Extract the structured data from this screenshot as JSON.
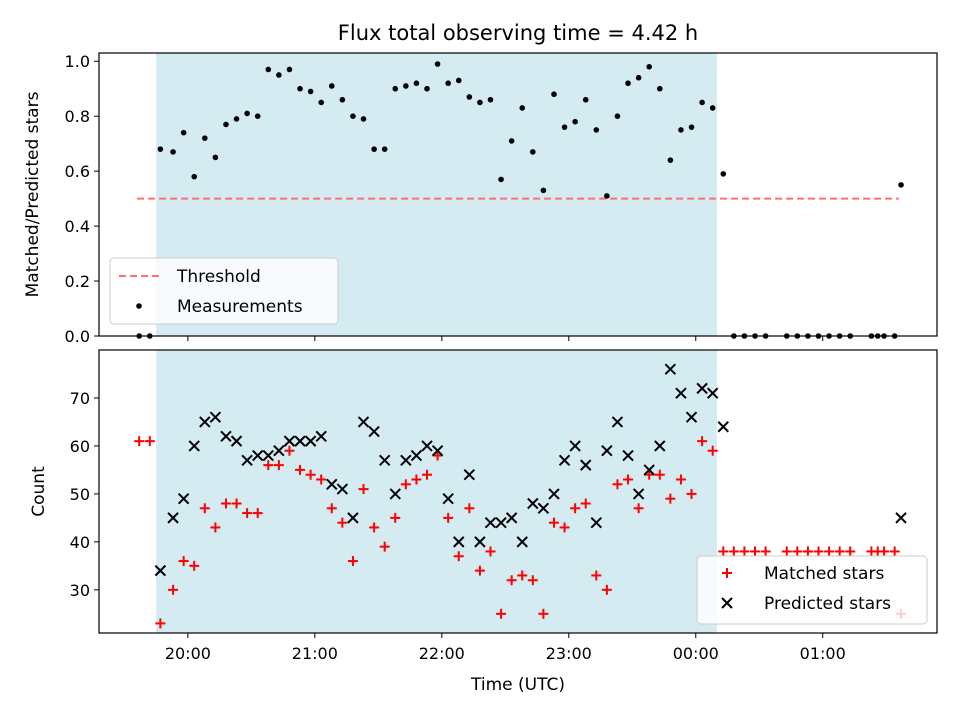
{
  "figure": {
    "title": "Flux total observing time = 4.42 h",
    "xlabel": "Time (UTC)"
  },
  "colors": {
    "shade": "#add8e6",
    "threshold": "#ff6f6f",
    "measurements": "#000000",
    "matched": "#ff0000",
    "predicted": "#000000"
  },
  "chart_data": [
    {
      "type": "scatter",
      "ylabel": "Matched/Predicted stars",
      "xlim": [
        19.3,
        1.9
      ],
      "ylim": [
        0.0,
        1.03
      ],
      "x_units": "hours UTC (wraps past midnight)",
      "yticks": [
        0.0,
        0.2,
        0.4,
        0.6,
        0.8,
        1.0
      ],
      "ytick_labels": [
        "0.0",
        "0.2",
        "0.4",
        "0.6",
        "0.8",
        "1.0"
      ],
      "observing_window": [
        "19:45",
        "00:10"
      ],
      "threshold": {
        "label": "Threshold",
        "y": 0.5,
        "x_range": [
          "19:36",
          "01:36"
        ]
      },
      "legend": {
        "placement": "lower-left",
        "entries": [
          "Threshold",
          "Measurements"
        ]
      },
      "series": [
        {
          "name": "Measurements",
          "points": [
            [
              "19:37",
              0.0
            ],
            [
              "19:42",
              0.0
            ],
            [
              "19:47",
              0.68
            ],
            [
              "19:53",
              0.67
            ],
            [
              "19:58",
              0.74
            ],
            [
              "20:03",
              0.58
            ],
            [
              "20:08",
              0.72
            ],
            [
              "20:13",
              0.65
            ],
            [
              "20:18",
              0.77
            ],
            [
              "20:23",
              0.79
            ],
            [
              "20:28",
              0.81
            ],
            [
              "20:33",
              0.8
            ],
            [
              "20:38",
              0.97
            ],
            [
              "20:43",
              0.95
            ],
            [
              "20:48",
              0.97
            ],
            [
              "20:53",
              0.9
            ],
            [
              "20:58",
              0.89
            ],
            [
              "21:03",
              0.85
            ],
            [
              "21:08",
              0.91
            ],
            [
              "21:13",
              0.86
            ],
            [
              "21:18",
              0.8
            ],
            [
              "21:23",
              0.79
            ],
            [
              "21:28",
              0.68
            ],
            [
              "21:33",
              0.68
            ],
            [
              "21:38",
              0.9
            ],
            [
              "21:43",
              0.91
            ],
            [
              "21:48",
              0.92
            ],
            [
              "21:53",
              0.9
            ],
            [
              "21:58",
              0.99
            ],
            [
              "22:03",
              0.92
            ],
            [
              "22:08",
              0.93
            ],
            [
              "22:13",
              0.87
            ],
            [
              "22:18",
              0.85
            ],
            [
              "22:23",
              0.86
            ],
            [
              "22:28",
              0.57
            ],
            [
              "22:33",
              0.71
            ],
            [
              "22:38",
              0.83
            ],
            [
              "22:43",
              0.67
            ],
            [
              "22:48",
              0.53
            ],
            [
              "22:53",
              0.88
            ],
            [
              "22:58",
              0.76
            ],
            [
              "23:03",
              0.78
            ],
            [
              "23:08",
              0.86
            ],
            [
              "23:13",
              0.75
            ],
            [
              "23:18",
              0.51
            ],
            [
              "23:23",
              0.8
            ],
            [
              "23:28",
              0.92
            ],
            [
              "23:33",
              0.94
            ],
            [
              "23:38",
              0.98
            ],
            [
              "23:43",
              0.9
            ],
            [
              "23:48",
              0.64
            ],
            [
              "23:53",
              0.75
            ],
            [
              "23:58",
              0.76
            ],
            [
              "00:03",
              0.85
            ],
            [
              "00:08",
              0.83
            ],
            [
              "00:13",
              0.59
            ],
            [
              "00:18",
              0.0
            ],
            [
              "00:23",
              0.0
            ],
            [
              "00:28",
              0.0
            ],
            [
              "00:33",
              0.0
            ],
            [
              "00:43",
              0.0
            ],
            [
              "00:48",
              0.0
            ],
            [
              "00:53",
              0.0
            ],
            [
              "00:58",
              0.0
            ],
            [
              "01:03",
              0.0
            ],
            [
              "01:08",
              0.0
            ],
            [
              "01:13",
              0.0
            ],
            [
              "01:23",
              0.0
            ],
            [
              "01:26",
              0.0
            ],
            [
              "01:29",
              0.0
            ],
            [
              "01:34",
              0.0
            ],
            [
              "01:37",
              0.55
            ]
          ]
        }
      ]
    },
    {
      "type": "scatter",
      "ylabel": "Count",
      "xlabel": "Time (UTC)",
      "xlim": [
        19.3,
        1.9
      ],
      "ylim": [
        21,
        80
      ],
      "yticks": [
        30,
        40,
        50,
        60,
        70
      ],
      "ytick_labels": [
        "30",
        "40",
        "50",
        "60",
        "70"
      ],
      "xticks": [
        "20:00",
        "21:00",
        "22:00",
        "23:00",
        "00:00",
        "01:00"
      ],
      "observing_window": [
        "19:45",
        "00:10"
      ],
      "legend": {
        "placement": "lower-right",
        "entries": [
          "Matched stars",
          "Predicted stars"
        ]
      },
      "series": [
        {
          "name": "Matched stars",
          "marker": "+",
          "points": [
            [
              "19:37",
              61
            ],
            [
              "19:42",
              61
            ],
            [
              "19:47",
              23
            ],
            [
              "19:53",
              30
            ],
            [
              "19:58",
              36
            ],
            [
              "20:03",
              35
            ],
            [
              "20:08",
              47
            ],
            [
              "20:13",
              43
            ],
            [
              "20:18",
              48
            ],
            [
              "20:23",
              48
            ],
            [
              "20:28",
              46
            ],
            [
              "20:33",
              46
            ],
            [
              "20:38",
              56
            ],
            [
              "20:43",
              56
            ],
            [
              "20:48",
              59
            ],
            [
              "20:53",
              55
            ],
            [
              "20:58",
              54
            ],
            [
              "21:03",
              53
            ],
            [
              "21:08",
              47
            ],
            [
              "21:13",
              44
            ],
            [
              "21:18",
              36
            ],
            [
              "21:23",
              51
            ],
            [
              "21:28",
              43
            ],
            [
              "21:33",
              39
            ],
            [
              "21:38",
              45
            ],
            [
              "21:43",
              52
            ],
            [
              "21:48",
              53
            ],
            [
              "21:53",
              54
            ],
            [
              "21:58",
              58
            ],
            [
              "22:03",
              45
            ],
            [
              "22:08",
              37
            ],
            [
              "22:13",
              47
            ],
            [
              "22:18",
              34
            ],
            [
              "22:23",
              38
            ],
            [
              "22:28",
              25
            ],
            [
              "22:33",
              32
            ],
            [
              "22:38",
              33
            ],
            [
              "22:43",
              32
            ],
            [
              "22:48",
              25
            ],
            [
              "22:53",
              44
            ],
            [
              "22:58",
              43
            ],
            [
              "23:03",
              47
            ],
            [
              "23:08",
              48
            ],
            [
              "23:13",
              33
            ],
            [
              "23:18",
              30
            ],
            [
              "23:23",
              52
            ],
            [
              "23:28",
              53
            ],
            [
              "23:33",
              47
            ],
            [
              "23:38",
              54
            ],
            [
              "23:43",
              54
            ],
            [
              "23:48",
              49
            ],
            [
              "23:53",
              53
            ],
            [
              "23:58",
              50
            ],
            [
              "00:03",
              61
            ],
            [
              "00:08",
              59
            ],
            [
              "00:13",
              38
            ],
            [
              "00:18",
              38
            ],
            [
              "00:23",
              38
            ],
            [
              "00:28",
              38
            ],
            [
              "00:33",
              38
            ],
            [
              "00:43",
              38
            ],
            [
              "00:48",
              38
            ],
            [
              "00:53",
              38
            ],
            [
              "00:58",
              38
            ],
            [
              "01:03",
              38
            ],
            [
              "01:08",
              38
            ],
            [
              "01:13",
              38
            ],
            [
              "01:23",
              38
            ],
            [
              "01:26",
              38
            ],
            [
              "01:29",
              38
            ],
            [
              "01:34",
              38
            ],
            [
              "01:37",
              25
            ]
          ]
        },
        {
          "name": "Predicted stars",
          "marker": "x",
          "points": [
            [
              "19:47",
              34
            ],
            [
              "19:53",
              45
            ],
            [
              "19:58",
              49
            ],
            [
              "20:03",
              60
            ],
            [
              "20:08",
              65
            ],
            [
              "20:13",
              66
            ],
            [
              "20:18",
              62
            ],
            [
              "20:23",
              61
            ],
            [
              "20:28",
              57
            ],
            [
              "20:33",
              58
            ],
            [
              "20:38",
              58
            ],
            [
              "20:43",
              59
            ],
            [
              "20:48",
              61
            ],
            [
              "20:53",
              61
            ],
            [
              "20:58",
              61
            ],
            [
              "21:03",
              62
            ],
            [
              "21:08",
              52
            ],
            [
              "21:13",
              51
            ],
            [
              "21:18",
              45
            ],
            [
              "21:23",
              65
            ],
            [
              "21:28",
              63
            ],
            [
              "21:33",
              57
            ],
            [
              "21:38",
              50
            ],
            [
              "21:43",
              57
            ],
            [
              "21:48",
              58
            ],
            [
              "21:53",
              60
            ],
            [
              "21:58",
              59
            ],
            [
              "22:03",
              49
            ],
            [
              "22:08",
              40
            ],
            [
              "22:13",
              54
            ],
            [
              "22:18",
              40
            ],
            [
              "22:23",
              44
            ],
            [
              "22:28",
              44
            ],
            [
              "22:33",
              45
            ],
            [
              "22:38",
              40
            ],
            [
              "22:43",
              48
            ],
            [
              "22:48",
              47
            ],
            [
              "22:53",
              50
            ],
            [
              "22:58",
              57
            ],
            [
              "23:03",
              60
            ],
            [
              "23:08",
              56
            ],
            [
              "23:13",
              44
            ],
            [
              "23:18",
              59
            ],
            [
              "23:23",
              65
            ],
            [
              "23:28",
              58
            ],
            [
              "23:33",
              50
            ],
            [
              "23:38",
              55
            ],
            [
              "23:43",
              60
            ],
            [
              "23:48",
              76
            ],
            [
              "23:53",
              71
            ],
            [
              "23:58",
              66
            ],
            [
              "00:03",
              72
            ],
            [
              "00:08",
              71
            ],
            [
              "00:13",
              64
            ],
            [
              "01:37",
              45
            ]
          ]
        }
      ]
    }
  ]
}
